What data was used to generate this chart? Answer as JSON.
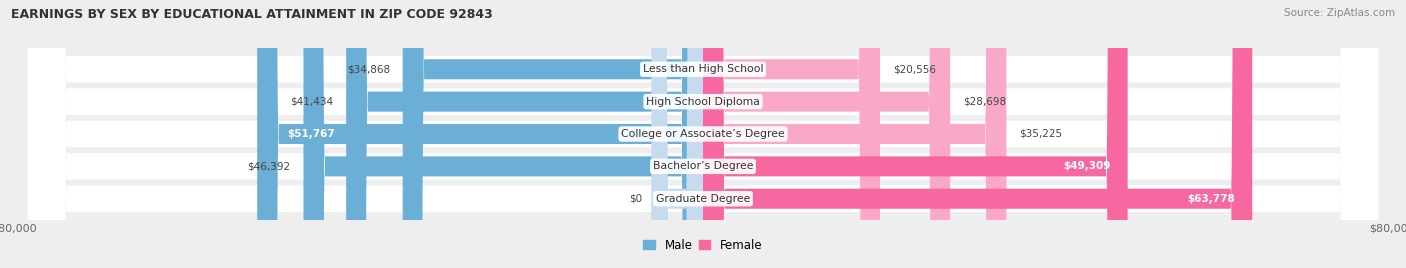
{
  "title": "EARNINGS BY SEX BY EDUCATIONAL ATTAINMENT IN ZIP CODE 92843",
  "source": "Source: ZipAtlas.com",
  "categories": [
    "Less than High School",
    "High School Diploma",
    "College or Associate’s Degree",
    "Bachelor’s Degree",
    "Graduate Degree"
  ],
  "male_values": [
    34868,
    41434,
    51767,
    46392,
    0
  ],
  "female_values": [
    20556,
    28698,
    35225,
    49309,
    63778
  ],
  "male_labels": [
    "$34,868",
    "$41,434",
    "$51,767",
    "$46,392",
    "$0"
  ],
  "female_labels": [
    "$20,556",
    "$28,698",
    "$35,225",
    "$49,309",
    "$63,778"
  ],
  "male_color": "#6baed6",
  "female_color_light": "#f9a8c9",
  "female_color_dark": "#f768a1",
  "male_color_light": "#c6dbef",
  "axis_max": 80000,
  "bg_color": "#eeeeee",
  "row_bg_color": "#f5f5f5",
  "male_label_inside_threshold": 50000,
  "female_label_inside_threshold": 45000
}
